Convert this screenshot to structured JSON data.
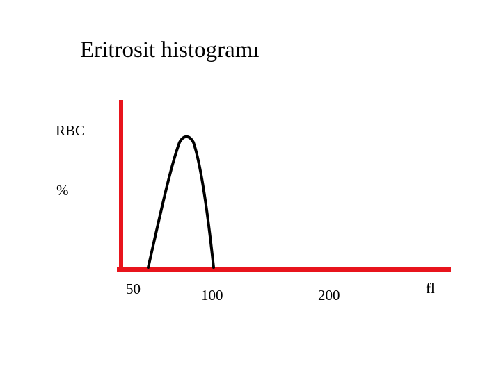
{
  "slide": {
    "title": "Eritrosit histogramı"
  },
  "chart_data": {
    "type": "line",
    "title": "Eritrosit histogramı",
    "ylabel_lines": [
      "RBC",
      "%"
    ],
    "xlabel": "fl",
    "x_ticks": [
      "50",
      "100",
      "200"
    ],
    "shape": "single peaked curve",
    "colors": {
      "axes": "#e8141c",
      "curve": "#000000"
    }
  }
}
